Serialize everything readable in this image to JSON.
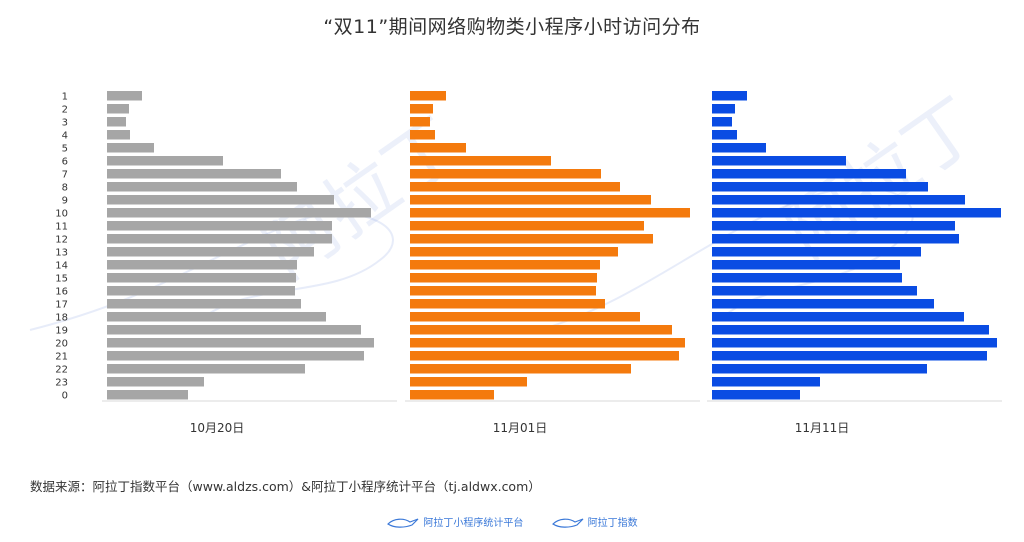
{
  "title": "“双11”期间网络购物类小程序小时访问分布",
  "source": "数据来源：阿拉丁指数平台（www.aldzs.com）&阿拉丁小程序统计平台（tj.aldwx.com）",
  "watermark": "阿拉丁",
  "footer": {
    "brand1": "阿拉丁小程序统计平台",
    "brand2": "阿拉丁指数"
  },
  "chart_data": [
    {
      "type": "bar",
      "orientation": "horizontal",
      "xlabel": "10月20日",
      "color": "#a6a6a6",
      "categories": [
        "1",
        "2",
        "3",
        "4",
        "5",
        "6",
        "7",
        "8",
        "9",
        "10",
        "11",
        "12",
        "13",
        "14",
        "15",
        "16",
        "17",
        "18",
        "19",
        "20",
        "21",
        "22",
        "23",
        "0"
      ],
      "values": [
        35,
        22,
        19,
        23,
        47,
        116,
        174,
        190,
        227,
        264,
        225,
        225,
        207,
        190,
        189,
        188,
        194,
        219,
        254,
        267,
        257,
        198,
        97,
        81
      ],
      "xlim": [
        0,
        290
      ]
    },
    {
      "type": "bar",
      "orientation": "horizontal",
      "xlabel": "11月01日",
      "color": "#f47a0d",
      "categories": [
        "1",
        "2",
        "3",
        "4",
        "5",
        "6",
        "7",
        "8",
        "9",
        "10",
        "11",
        "12",
        "13",
        "14",
        "15",
        "16",
        "17",
        "18",
        "19",
        "20",
        "21",
        "22",
        "23",
        "0"
      ],
      "values": [
        36,
        23,
        20,
        25,
        56,
        141,
        191,
        210,
        241,
        280,
        234,
        243,
        208,
        190,
        187,
        186,
        195,
        230,
        262,
        275,
        269,
        221,
        117,
        84
      ],
      "xlim": [
        0,
        290
      ]
    },
    {
      "type": "bar",
      "orientation": "horizontal",
      "xlabel": "11月11日",
      "color": "#0a4ce3",
      "categories": [
        "1",
        "2",
        "3",
        "4",
        "5",
        "6",
        "7",
        "8",
        "9",
        "10",
        "11",
        "12",
        "13",
        "14",
        "15",
        "16",
        "17",
        "18",
        "19",
        "20",
        "21",
        "22",
        "23",
        "0"
      ],
      "values": [
        35,
        23,
        20,
        25,
        54,
        134,
        194,
        216,
        253,
        289,
        243,
        247,
        209,
        188,
        190,
        205,
        222,
        252,
        277,
        285,
        275,
        215,
        108,
        88
      ],
      "xlim": [
        0,
        290
      ]
    }
  ]
}
